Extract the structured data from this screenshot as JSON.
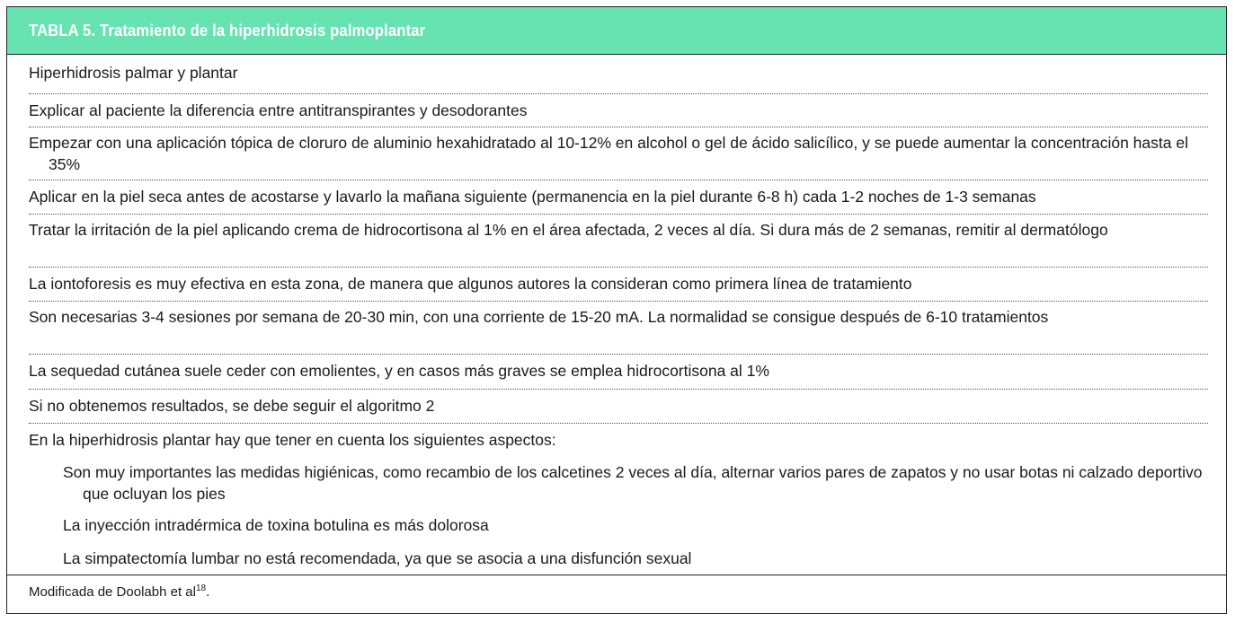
{
  "table": {
    "title": "TABLA 5. Tratamiento de la hiperhidrosis palmoplantar",
    "header_color": "#67e3b2",
    "rows": [
      "Hiperhidrosis palmar y plantar",
      "Explicar al paciente la diferencia entre antitranspirantes y desodorantes",
      "Empezar con una aplicación tópica de cloruro de aluminio hexahidratado al 10-12% en alcohol o gel de ácido salicílico, y se puede aumentar la concentración hasta el 35%",
      "Aplicar en la piel seca antes de acostarse y lavarlo la mañana siguiente (permanencia en la piel durante 6-8 h) cada 1-2 noches de 1-3 semanas",
      "Tratar la irritación de la piel aplicando crema de hidrocortisona al 1% en el área afectada, 2 veces al día. Si dura más de 2 semanas, remitir al dermatólogo",
      "La iontoforesis es muy efectiva en esta zona, de manera que algunos autores la consideran como primera línea de tratamiento",
      "Son necesarias 3-4 sesiones por semana de 20-30 min, con una corriente de 15-20 mA. La normalidad se consigue después de 6-10 tratamientos",
      "La sequedad cutánea suele ceder con emolientes, y en casos más graves se emplea hidrocortisona al 1%",
      "Si no obtenemos resultados, se debe seguir el algoritmo 2",
      "En la hiperhidrosis plantar hay que tener en cuenta los siguientes aspectos:"
    ],
    "subrows": [
      "Son muy importantes las medidas higiénicas, como recambio de los calcetines 2 veces al día, alternar varios pares de zapatos y no usar botas ni calzado deportivo que ocluyan los pies",
      "La inyección intradérmica de toxina botulina es más dolorosa",
      "La simpatectomía lumbar no está recomendada, ya que se asocia a una disfunción sexual"
    ],
    "footer": {
      "text": "Modificada de Doolabh et al",
      "ref": "18",
      "end": "."
    }
  }
}
